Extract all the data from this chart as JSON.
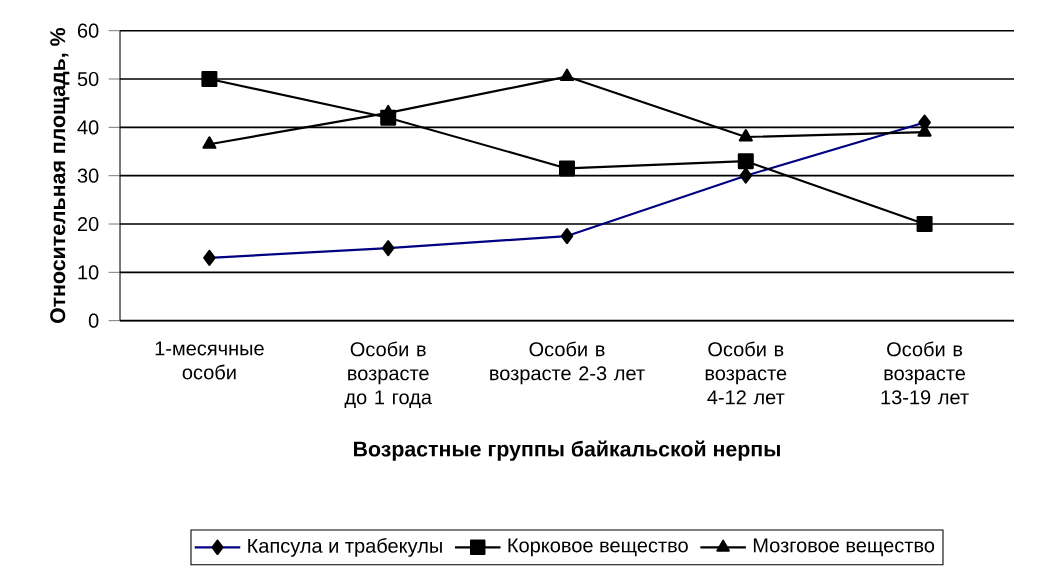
{
  "chart_data": {
    "type": "line",
    "xlabel": "Возрастные группы байкальской нерпы",
    "ylabel": "Относительная площадь, %",
    "categories": [
      "1-месячные особи",
      "Особи в возрасте до 1 года",
      "Особи в возрасте 2-3 лет",
      "Особи в возрасте 4-12 лет",
      "Особи в возрасте 13-19 лет"
    ],
    "series": [
      {
        "name": "Капсула и трабекулы",
        "color": "#000080",
        "marker": "diamond",
        "values": [
          13,
          15,
          17.5,
          30,
          41
        ]
      },
      {
        "name": "Корковое вещество",
        "color": "#000000",
        "marker": "square",
        "values": [
          50,
          42,
          31.5,
          33,
          20
        ]
      },
      {
        "name": "Мозговое вещество",
        "color": "#000000",
        "marker": "triangle",
        "values": [
          36.5,
          43,
          50.5,
          38,
          39
        ]
      }
    ],
    "ylim": [
      0,
      60
    ],
    "yticks": [
      0,
      10,
      20,
      30,
      40,
      50,
      60
    ],
    "grid": "y",
    "legend": "bottom",
    "line_style": "solid"
  }
}
